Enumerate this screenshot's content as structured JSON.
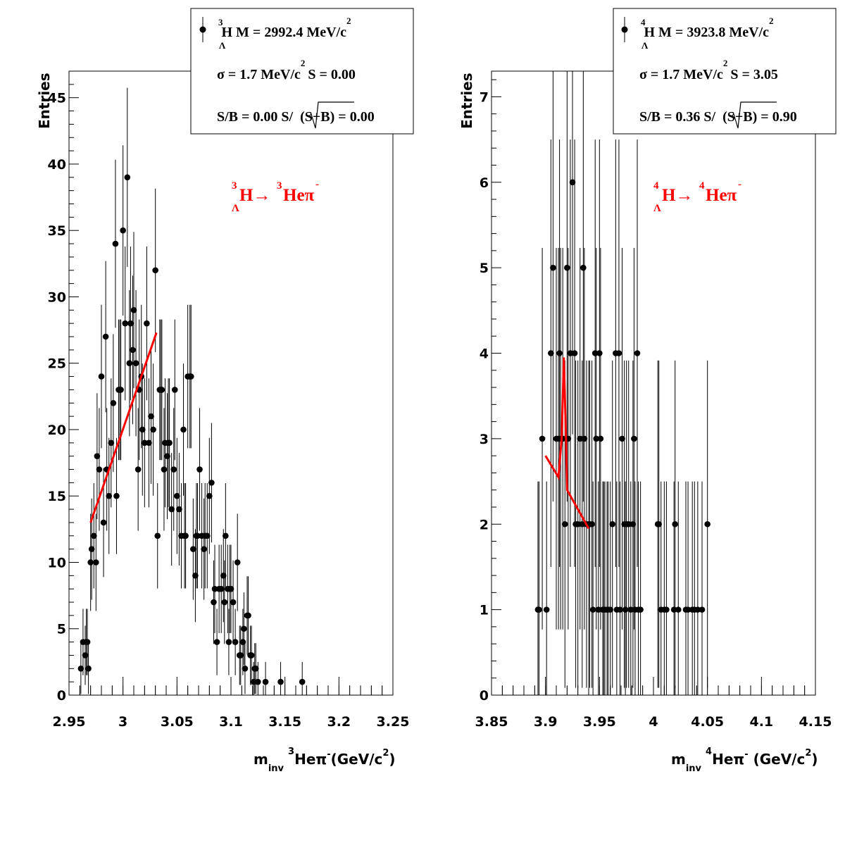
{
  "chart_data": [
    {
      "type": "scatter",
      "xlabel": {
        "main": "m",
        "sub": "inv",
        "sup": "3",
        "particle": "Heπ",
        "charge": "-",
        "unit": "(GeV/c",
        "unit_exp": "2",
        "unit_close": ")"
      },
      "ylabel": "Entries",
      "xlim": [
        2.95,
        3.25
      ],
      "ylim": [
        0,
        47
      ],
      "xticks": [
        "2.95",
        "3",
        "3.05",
        "3.1",
        "3.15",
        "3.2",
        "3.25"
      ],
      "xtick_values": [
        2.95,
        3.0,
        3.05,
        3.1,
        3.15,
        3.2,
        3.25
      ],
      "yticks": [
        "0",
        "5",
        "10",
        "15",
        "20",
        "25",
        "30",
        "35",
        "40",
        "45"
      ],
      "ytick_values": [
        0,
        5,
        10,
        15,
        20,
        25,
        30,
        35,
        40,
        45
      ],
      "points": [
        [
          2.961,
          2
        ],
        [
          2.963,
          4
        ],
        [
          2.965,
          3
        ],
        [
          2.966,
          4
        ],
        [
          2.967,
          4
        ],
        [
          2.968,
          2
        ],
        [
          2.97,
          10
        ],
        [
          2.971,
          11
        ],
        [
          2.973,
          12
        ],
        [
          2.975,
          10
        ],
        [
          2.976,
          18
        ],
        [
          2.978,
          17
        ],
        [
          2.98,
          24
        ],
        [
          2.982,
          13
        ],
        [
          2.984,
          27
        ],
        [
          2.985,
          17
        ],
        [
          2.987,
          15
        ],
        [
          2.989,
          19
        ],
        [
          2.991,
          22
        ],
        [
          2.993,
          34
        ],
        [
          2.994,
          15
        ],
        [
          2.996,
          23
        ],
        [
          2.997,
          23
        ],
        [
          2.998,
          23
        ],
        [
          3.0,
          35
        ],
        [
          3.002,
          28
        ],
        [
          3.004,
          39
        ],
        [
          3.006,
          25
        ],
        [
          3.007,
          28
        ],
        [
          3.009,
          26
        ],
        [
          3.01,
          29
        ],
        [
          3.012,
          25
        ],
        [
          3.014,
          17
        ],
        [
          3.015,
          23
        ],
        [
          3.017,
          24
        ],
        [
          3.018,
          20
        ],
        [
          3.02,
          19
        ],
        [
          3.022,
          28
        ],
        [
          3.024,
          19
        ],
        [
          3.026,
          21
        ],
        [
          3.028,
          20
        ],
        [
          3.03,
          32
        ],
        [
          3.032,
          12
        ],
        [
          3.034,
          23
        ],
        [
          3.035,
          23
        ],
        [
          3.036,
          23
        ],
        [
          3.038,
          17
        ],
        [
          3.039,
          19
        ],
        [
          3.041,
          18
        ],
        [
          3.042,
          19
        ],
        [
          3.043,
          19
        ],
        [
          3.045,
          14
        ],
        [
          3.047,
          17
        ],
        [
          3.048,
          23
        ],
        [
          3.05,
          15
        ],
        [
          3.052,
          14
        ],
        [
          3.054,
          12
        ],
        [
          3.056,
          20
        ],
        [
          3.057,
          12
        ],
        [
          3.058,
          12
        ],
        [
          3.06,
          24
        ],
        [
          3.062,
          24
        ],
        [
          3.063,
          24
        ],
        [
          3.065,
          11
        ],
        [
          3.067,
          9
        ],
        [
          3.068,
          12
        ],
        [
          3.069,
          12
        ],
        [
          3.071,
          17
        ],
        [
          3.073,
          12
        ],
        [
          3.075,
          11
        ],
        [
          3.076,
          12
        ],
        [
          3.078,
          12
        ],
        [
          3.08,
          15
        ],
        [
          3.082,
          16
        ],
        [
          3.084,
          7
        ],
        [
          3.085,
          8
        ],
        [
          3.087,
          4
        ],
        [
          3.089,
          8
        ],
        [
          3.091,
          8
        ],
        [
          3.093,
          9
        ],
        [
          3.094,
          7
        ],
        [
          3.095,
          12
        ],
        [
          3.097,
          8
        ],
        [
          3.098,
          4
        ],
        [
          3.099,
          8
        ],
        [
          3.1,
          8
        ],
        [
          3.102,
          7
        ],
        [
          3.104,
          4
        ],
        [
          3.106,
          10
        ],
        [
          3.108,
          3
        ],
        [
          3.109,
          3
        ],
        [
          3.111,
          4
        ],
        [
          3.112,
          5
        ],
        [
          3.113,
          2
        ],
        [
          3.115,
          6
        ],
        [
          3.116,
          6
        ],
        [
          3.118,
          3
        ],
        [
          3.119,
          3
        ],
        [
          3.121,
          1
        ],
        [
          3.122,
          2
        ],
        [
          3.123,
          2
        ],
        [
          3.125,
          1
        ],
        [
          3.132,
          1
        ],
        [
          3.146,
          1
        ],
        [
          3.166,
          1
        ]
      ],
      "fit_line": [
        [
          2.97,
          13.0
        ],
        [
          3.031,
          27.3
        ]
      ],
      "fit_color": "#ff0000",
      "legend": {
        "line1": {
          "sup": "3",
          "sub": "Λ",
          "name": "H M = 2992.4 MeV/c",
          "exp": "2"
        },
        "line2": {
          "text": "σ = 1.7 MeV/c",
          "exp": "2",
          "rest": "S = 0.00"
        },
        "line3": {
          "text": "S/B = 0.00  S/",
          "sqrt_arg": "(S+B)",
          "rest": " = 0.00"
        }
      },
      "reaction": {
        "sup1": "3",
        "sub1": "Λ",
        "mother": "H→",
        "sup2": "3",
        "daughter": "Heπ",
        "charge": "-"
      }
    },
    {
      "type": "scatter",
      "xlabel": {
        "main": "m",
        "sub": "inv",
        "sup": "4",
        "particle": "Heπ",
        "charge": "-",
        "unit": " (GeV/c",
        "unit_exp": "2",
        "unit_close": ")"
      },
      "ylabel": "Entries",
      "xlim": [
        3.85,
        4.15
      ],
      "ylim": [
        0,
        7.3
      ],
      "xticks": [
        "3.85",
        "3.9",
        "3.95",
        "4",
        "4.05",
        "4.1",
        "4.15"
      ],
      "xtick_values": [
        3.85,
        3.9,
        3.95,
        4.0,
        4.05,
        4.1,
        4.15
      ],
      "yticks": [
        "0",
        "1",
        "2",
        "3",
        "4",
        "5",
        "6",
        "7"
      ],
      "ytick_values": [
        0,
        1,
        2,
        3,
        4,
        5,
        6,
        7
      ],
      "points": [
        [
          3.893,
          1
        ],
        [
          3.894,
          1
        ],
        [
          3.897,
          3
        ],
        [
          3.901,
          1
        ],
        [
          3.905,
          4
        ],
        [
          3.907,
          5
        ],
        [
          3.91,
          3
        ],
        [
          3.912,
          3
        ],
        [
          3.913,
          4
        ],
        [
          3.914,
          3
        ],
        [
          3.916,
          3
        ],
        [
          3.918,
          2
        ],
        [
          3.92,
          5
        ],
        [
          3.921,
          3
        ],
        [
          3.923,
          4
        ],
        [
          3.925,
          6
        ],
        [
          3.927,
          4
        ],
        [
          3.928,
          2
        ],
        [
          3.93,
          2
        ],
        [
          3.932,
          3
        ],
        [
          3.934,
          2
        ],
        [
          3.935,
          5
        ],
        [
          3.936,
          3
        ],
        [
          3.938,
          2
        ],
        [
          3.94,
          2
        ],
        [
          3.941,
          2
        ],
        [
          3.943,
          2
        ],
        [
          3.944,
          1
        ],
        [
          3.946,
          4
        ],
        [
          3.947,
          3
        ],
        [
          3.949,
          1
        ],
        [
          3.95,
          4
        ],
        [
          3.951,
          3
        ],
        [
          3.953,
          1
        ],
        [
          3.954,
          1
        ],
        [
          3.955,
          1
        ],
        [
          3.957,
          1
        ],
        [
          3.958,
          1
        ],
        [
          3.96,
          1
        ],
        [
          3.962,
          2
        ],
        [
          3.965,
          4
        ],
        [
          3.966,
          1
        ],
        [
          3.968,
          4
        ],
        [
          3.969,
          1
        ],
        [
          3.971,
          3
        ],
        [
          3.973,
          2
        ],
        [
          3.974,
          1
        ],
        [
          3.975,
          2
        ],
        [
          3.977,
          2
        ],
        [
          3.979,
          1
        ],
        [
          3.981,
          2
        ],
        [
          3.982,
          3
        ],
        [
          3.983,
          1
        ],
        [
          3.985,
          4
        ],
        [
          3.986,
          1
        ],
        [
          3.988,
          1
        ],
        [
          4.004,
          2
        ],
        [
          4.005,
          2
        ],
        [
          4.007,
          1
        ],
        [
          4.01,
          1
        ],
        [
          4.012,
          1
        ],
        [
          4.019,
          1
        ],
        [
          4.02,
          2
        ],
        [
          4.023,
          1
        ],
        [
          4.03,
          1
        ],
        [
          4.032,
          1
        ],
        [
          4.036,
          1
        ],
        [
          4.038,
          1
        ],
        [
          4.041,
          1
        ],
        [
          4.045,
          1
        ],
        [
          4.05,
          2
        ]
      ],
      "fit_line": [
        [
          3.9,
          2.8
        ],
        [
          3.912,
          2.55
        ],
        [
          3.915,
          3.0
        ],
        [
          3.917,
          3.95
        ],
        [
          3.919,
          3.0
        ],
        [
          3.92,
          2.4
        ],
        [
          3.94,
          1.95
        ]
      ],
      "fit_color": "#ff0000",
      "legend": {
        "line1": {
          "sup": "4",
          "sub": "Λ",
          "name": "H M = 3923.8 MeV/c",
          "exp": "2"
        },
        "line2": {
          "text": "σ = 1.7 MeV/c",
          "exp": "2",
          "rest": "S = 3.05"
        },
        "line3": {
          "text": "S/B = 0.36  S/",
          "sqrt_arg": "(S+B)",
          "rest": " = 0.90"
        }
      },
      "reaction": {
        "sup1": "4",
        "sub1": "Λ",
        "mother": "H→",
        "sup2": "4",
        "daughter": "Heπ",
        "charge": "-"
      }
    }
  ]
}
